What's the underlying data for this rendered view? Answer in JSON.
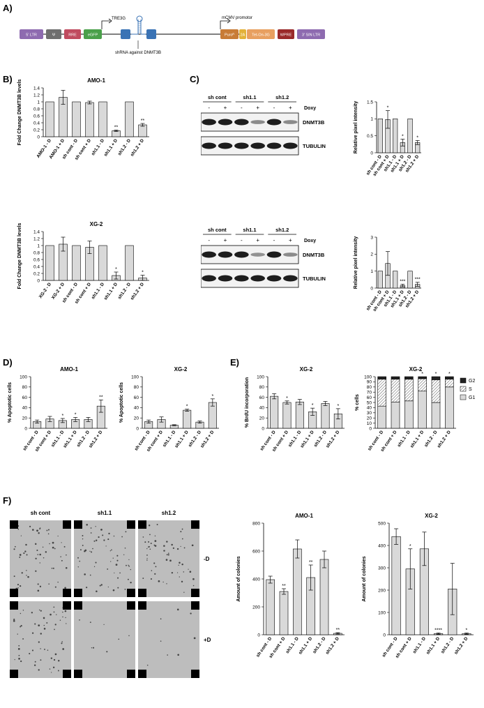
{
  "panels": {
    "A": "A)",
    "B": "B)",
    "C": "C)",
    "D": "D)",
    "E": "E)",
    "F": "F)"
  },
  "cassette": {
    "elements": [
      {
        "label": "5' LTR",
        "color": "#8e6bb0"
      },
      {
        "label": "Ψ",
        "color": "#6f6f6f"
      },
      {
        "label": "RRE",
        "color": "#c04b5f"
      },
      {
        "label": "eGFP",
        "color": "#4aa04a"
      },
      {
        "label": "Puroᴿ",
        "color": "#c87c36"
      },
      {
        "label": "2A",
        "color": "#e3b23a"
      },
      {
        "label": "Tet-On-3G",
        "color": "#e8a060"
      },
      {
        "label": "WPRE",
        "color": "#9a2a2a"
      },
      {
        "label": "3' SIN LTR",
        "color": "#8e6bb0"
      }
    ],
    "tre_label": "TRE3G",
    "cmv_label": "mCMV promotor",
    "shrna_label": "shRNA against DNMT3B"
  },
  "blots": [
    {
      "groups": [
        "sh cont",
        "sh1.1",
        "sh1.2"
      ],
      "signs": [
        "-",
        "+",
        "-",
        "+",
        "-",
        "+"
      ],
      "doxy_label": "Doxy",
      "rows": [
        "DNMT3B",
        "TUBULIN"
      ]
    },
    {
      "groups": [
        "sh cont",
        "sh1.1",
        "sh1.2"
      ],
      "signs": [
        "-",
        "+",
        "-",
        "+",
        "-",
        "+"
      ],
      "doxy_label": "Doxy",
      "rows": [
        "DNMT3B",
        "TUBULIN"
      ]
    }
  ],
  "colony": {
    "columns": [
      "sh cont",
      "sh1.1",
      "sh1.2"
    ],
    "rows": [
      "-D",
      "+D"
    ]
  },
  "chart_data": [
    {
      "id": "B-AMO1",
      "type": "bar",
      "title": "AMO-1",
      "ylabel": "Fold Change DNMT3B levels",
      "ylim": [
        0,
        1.4
      ],
      "ticks": [
        0,
        0.2,
        0.4,
        0.6,
        0.8,
        1.0,
        1.2,
        1.4
      ],
      "categories": [
        "AMO-1 - D",
        "AMO-1 + D",
        "sh cont - D",
        "sh cont + D",
        "sh1.1 - D",
        "sh1.1 + D",
        "sh1.2 - D",
        "sh1.2 + D"
      ],
      "values": [
        1.0,
        1.13,
        1.0,
        0.98,
        1.0,
        0.17,
        1.0,
        0.34
      ],
      "errors": [
        0,
        0.2,
        0,
        0.04,
        0,
        0.02,
        0,
        0.04
      ],
      "annotations": [
        "",
        "",
        "",
        "",
        "",
        "**",
        "",
        "**"
      ]
    },
    {
      "id": "B-XG2",
      "type": "bar",
      "title": "XG-2",
      "ylabel": "Fold Change DNMT3B levels",
      "ylim": [
        0,
        1.4
      ],
      "ticks": [
        0,
        0.2,
        0.4,
        0.6,
        0.8,
        1.0,
        1.2,
        1.4
      ],
      "categories": [
        "XG-2 - D",
        "XG-2 + D",
        "sh cont - D",
        "sh cont + D",
        "sh1.1 - D",
        "sh1.1 + D",
        "sh1.2 - D",
        "sh1.2 + D"
      ],
      "values": [
        1.0,
        1.04,
        1.0,
        0.95,
        1.0,
        0.14,
        1.0,
        0.07
      ],
      "errors": [
        0,
        0.2,
        0,
        0.18,
        0,
        0.1,
        0,
        0.08
      ],
      "annotations": [
        "",
        "",
        "",
        "",
        "",
        "*",
        "",
        "*"
      ]
    },
    {
      "id": "C-1",
      "type": "bar",
      "title": "",
      "ylabel": "Relative pixel intensity",
      "ylim": [
        0,
        1.5
      ],
      "ticks": [
        0,
        0.5,
        1.0,
        1.5
      ],
      "categories": [
        "sh cont - D",
        "sh cont + D",
        "sh1.1 - D",
        "sh1.1 + D",
        "sh1.2 - D",
        "sh1.2 + D"
      ],
      "values": [
        1.0,
        0.98,
        1.0,
        0.3,
        1.0,
        0.3
      ],
      "errors": [
        0,
        0.26,
        0,
        0.1,
        0,
        0.06
      ],
      "annotations": [
        "",
        "*",
        "",
        "*",
        "",
        "*"
      ]
    },
    {
      "id": "C-2",
      "type": "bar",
      "title": "",
      "ylabel": "Relative pixel intensity",
      "ylim": [
        0,
        3
      ],
      "ticks": [
        0,
        1,
        2,
        3
      ],
      "categories": [
        "sh cont - D",
        "sh cont + D",
        "sh1.1 - D",
        "sh1.1 + D",
        "sh1.2 - D",
        "sh1.2 + D"
      ],
      "values": [
        1.0,
        1.45,
        1.0,
        0.15,
        1.0,
        0.22
      ],
      "errors": [
        0,
        0.7,
        0,
        0.08,
        0,
        0.12
      ],
      "annotations": [
        "",
        "",
        "",
        "***",
        "",
        "***"
      ]
    },
    {
      "id": "D-AMO1",
      "type": "bar",
      "title": "AMO-1",
      "ylabel": "% Apoptotic cells",
      "ylim": [
        0,
        100
      ],
      "ticks": [
        0,
        20,
        40,
        60,
        80,
        100
      ],
      "categories": [
        "sh cont - D",
        "sh cont + D",
        "sh1.1 - D",
        "sh1.1 + D",
        "sh1.2 - D",
        "sh1.2 + D"
      ],
      "values": [
        13,
        18,
        15,
        17,
        17,
        43
      ],
      "errors": [
        3,
        5,
        4,
        4,
        4,
        12
      ],
      "annotations": [
        "",
        "",
        "*",
        "*",
        "",
        "**"
      ]
    },
    {
      "id": "D-XG2",
      "type": "bar",
      "title": "XG-2",
      "ylabel": "% Apoptotic cells",
      "ylim": [
        0,
        100
      ],
      "ticks": [
        0,
        20,
        40,
        60,
        80,
        100
      ],
      "categories": [
        "sh cont - D",
        "sh cont + D",
        "sh1.1 - D",
        "sh1.1 + D",
        "sh1.2 - D",
        "sh1.2 + D"
      ],
      "values": [
        13,
        17,
        6,
        35,
        12,
        50
      ],
      "errors": [
        3,
        5,
        1,
        2,
        2,
        7
      ],
      "annotations": [
        "",
        "",
        "",
        "*",
        "",
        "*"
      ]
    },
    {
      "id": "E-1",
      "type": "bar",
      "title": "XG-2",
      "ylabel": "% BrdU incorporation",
      "ylim": [
        0,
        100
      ],
      "ticks": [
        0,
        20,
        40,
        60,
        80,
        100
      ],
      "categories": [
        "sh cont - D",
        "sh cont + D",
        "sh1.1 - D",
        "sh1.1 + D",
        "sh1.2 - D",
        "sh1.2 + D"
      ],
      "values": [
        62,
        50,
        51,
        32,
        48,
        28
      ],
      "errors": [
        5,
        3,
        5,
        7,
        4,
        10
      ],
      "annotations": [
        "",
        "*",
        "",
        "*",
        "",
        "*"
      ]
    },
    {
      "id": "E-2",
      "type": "bar",
      "title": "XG-2",
      "ylabel": "% cells",
      "ylim": [
        0,
        100
      ],
      "ticks": [
        0,
        10,
        20,
        30,
        40,
        50,
        60,
        70,
        80,
        90,
        100
      ],
      "categories": [
        "sh cont - D",
        "sh cont + D",
        "sh1.1 - D",
        "sh1.1 + D",
        "sh1.2 - D",
        "sh1.2 + D"
      ],
      "series": [
        {
          "name": "G1",
          "values": [
            43,
            51,
            53,
            72,
            50,
            80
          ]
        },
        {
          "name": "S",
          "values": [
            52,
            44,
            42,
            24,
            44,
            15
          ]
        },
        {
          "name": "G2",
          "values": [
            5,
            5,
            5,
            4,
            6,
            5
          ]
        }
      ],
      "annotations": [
        "",
        "",
        "",
        "*",
        "*",
        "*"
      ],
      "legend": [
        "G2",
        "S",
        "G1"
      ]
    },
    {
      "id": "F-AMO1",
      "type": "bar",
      "title": "AMO-1",
      "ylabel": "Amount of colonies",
      "ylim": [
        0,
        800
      ],
      "ticks": [
        0,
        200,
        400,
        600,
        800
      ],
      "categories": [
        "sh cont - D",
        "sh cont + D",
        "sh1.1 - D",
        "sh1.1 + D",
        "sh1.2 - D",
        "sh1.2 + D"
      ],
      "values": [
        395,
        310,
        615,
        410,
        540,
        10
      ],
      "errors": [
        25,
        20,
        65,
        90,
        60,
        5
      ],
      "annotations": [
        "",
        "**",
        "",
        "**",
        "",
        "**"
      ]
    },
    {
      "id": "F-XG2",
      "type": "bar",
      "title": "XG-2",
      "ylabel": "Amount of colonies",
      "ylim": [
        0,
        500
      ],
      "ticks": [
        0,
        100,
        200,
        300,
        400,
        500
      ],
      "categories": [
        "sh cont - D",
        "sh cont + D",
        "sh1.1 - D",
        "sh1.1 + D",
        "sh1.2 - D",
        "sh1.2 + D"
      ],
      "values": [
        440,
        295,
        385,
        5,
        205,
        5
      ],
      "errors": [
        35,
        90,
        75,
        3,
        115,
        3
      ],
      "annotations": [
        "",
        "*",
        "",
        "****",
        "",
        "*"
      ]
    }
  ]
}
